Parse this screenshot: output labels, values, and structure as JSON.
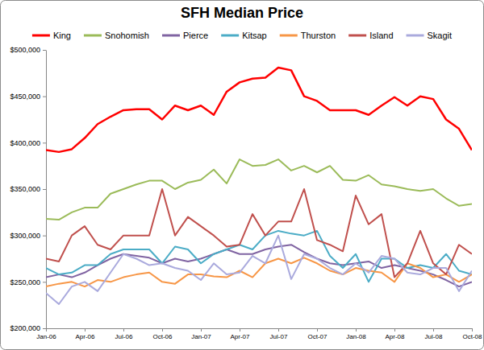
{
  "chart_data": {
    "type": "line",
    "title": "SFH Median Price",
    "categories": [
      "Jan-06",
      null,
      null,
      "Apr-06",
      null,
      null,
      "Jul-06",
      null,
      null,
      "Oct-06",
      null,
      null,
      "Jan-07",
      null,
      null,
      "Apr-07",
      null,
      null,
      "Jul-07",
      null,
      null,
      "Oct-07",
      null,
      null,
      "Jan-08",
      null,
      null,
      "Apr-08",
      null,
      null,
      "Jul-08",
      null,
      null,
      "Oct-08"
    ],
    "series": [
      {
        "name": "King",
        "color": "#ff0000",
        "values": [
          392000,
          390000,
          393000,
          405000,
          420000,
          428000,
          435000,
          436000,
          436000,
          425000,
          440000,
          435000,
          440000,
          430000,
          455000,
          465000,
          469000,
          470000,
          481000,
          478000,
          450000,
          445000,
          435000,
          435000,
          435000,
          430000,
          440000,
          449000,
          440000,
          450000,
          447000,
          425000,
          415000,
          392000
        ]
      },
      {
        "name": "Snohomish",
        "color": "#9bbb59",
        "values": [
          318000,
          317000,
          325000,
          330000,
          330000,
          345000,
          350000,
          355000,
          359000,
          359000,
          350000,
          357000,
          360000,
          371000,
          356000,
          382000,
          375000,
          376000,
          382000,
          370000,
          375000,
          368000,
          375000,
          360000,
          359000,
          365000,
          355000,
          353000,
          350000,
          348000,
          350000,
          340000,
          332000,
          334000
        ]
      },
      {
        "name": "Pierce",
        "color": "#8064a2",
        "values": [
          255000,
          258000,
          255000,
          260000,
          268000,
          275000,
          280000,
          278000,
          276000,
          270000,
          275000,
          272000,
          275000,
          280000,
          285000,
          280000,
          280000,
          285000,
          288000,
          290000,
          282000,
          275000,
          270000,
          268000,
          270000,
          272000,
          265000,
          268000,
          265000,
          262000,
          258000,
          252000,
          245000,
          250000
        ]
      },
      {
        "name": "Kitsap",
        "color": "#4bacc6",
        "values": [
          265000,
          258000,
          260000,
          268000,
          268000,
          280000,
          285000,
          285000,
          285000,
          270000,
          288000,
          285000,
          270000,
          280000,
          285000,
          290000,
          285000,
          300000,
          305000,
          302000,
          300000,
          305000,
          278000,
          265000,
          280000,
          250000,
          275000,
          275000,
          265000,
          268000,
          265000,
          280000,
          262000,
          258000
        ]
      },
      {
        "name": "Thurston",
        "color": "#f79646",
        "values": [
          245000,
          248000,
          250000,
          245000,
          252000,
          250000,
          255000,
          258000,
          260000,
          250000,
          248000,
          258000,
          258000,
          256000,
          255000,
          262000,
          255000,
          270000,
          275000,
          270000,
          276000,
          270000,
          262000,
          258000,
          265000,
          262000,
          260000,
          250000,
          270000,
          265000,
          255000,
          258000,
          250000,
          258000
        ]
      },
      {
        "name": "Island",
        "color": "#c0504d",
        "values": [
          275000,
          272000,
          300000,
          310000,
          290000,
          285000,
          300000,
          300000,
          300000,
          350000,
          300000,
          320000,
          310000,
          300000,
          288000,
          290000,
          323000,
          300000,
          315000,
          315000,
          350000,
          295000,
          290000,
          283000,
          343000,
          312000,
          323000,
          255000,
          270000,
          305000,
          270000,
          258000,
          290000,
          280000
        ]
      },
      {
        "name": "Skagit",
        "color": "#aaaadd",
        "values": [
          238000,
          226000,
          245000,
          250000,
          240000,
          260000,
          280000,
          275000,
          268000,
          270000,
          265000,
          262000,
          252000,
          270000,
          258000,
          260000,
          278000,
          270000,
          300000,
          253000,
          280000,
          275000,
          265000,
          258000,
          270000,
          260000,
          278000,
          275000,
          260000,
          258000,
          265000,
          265000,
          240000,
          262000
        ]
      }
    ],
    "ylim": [
      200000,
      500000
    ],
    "yticks": [
      {
        "value": 200000,
        "label": "$200,000"
      },
      {
        "value": 250000,
        "label": "$250,000"
      },
      {
        "value": 300000,
        "label": "$300,000"
      },
      {
        "value": 350000,
        "label": "$350,000"
      },
      {
        "value": 400000,
        "label": "$400,000"
      },
      {
        "value": 450000,
        "label": "$450,000"
      },
      {
        "value": 500000,
        "label": "$500,000"
      }
    ],
    "grid": false,
    "legend": "top",
    "line_style": "solid",
    "marker": "none"
  }
}
